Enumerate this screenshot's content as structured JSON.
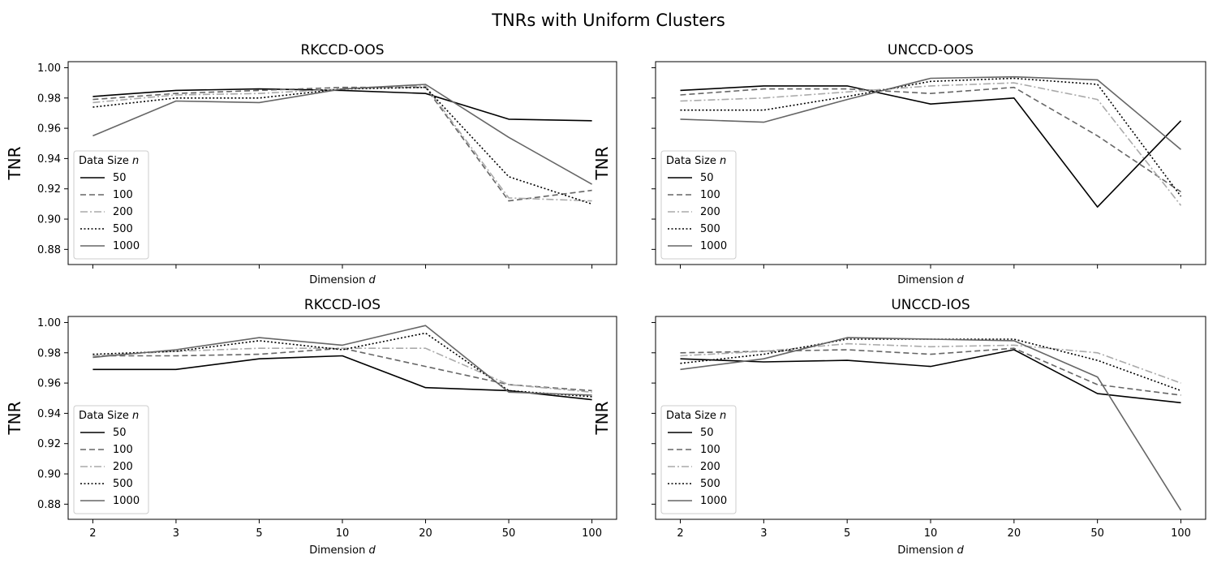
{
  "figure_title": "TNRs with Uniform Clusters",
  "chart_data": [
    {
      "type": "line",
      "title": "RKCCD-OOS",
      "xlabel": "Dimension d",
      "ylabel": "TNR",
      "x_is_categorical": true,
      "categories": [
        "2",
        "3",
        "5",
        "10",
        "20",
        "50",
        "100"
      ],
      "ylim": [
        0.87,
        1.004
      ],
      "yticks": [
        0.88,
        0.9,
        0.92,
        0.94,
        0.96,
        0.98,
        1.0
      ],
      "show_xtick_labels": false,
      "show_ytick_labels": true,
      "legend": {
        "title": "Data Size n",
        "placement": "lower-left"
      },
      "series": [
        {
          "name": "50",
          "style": "solid",
          "color": "#000000",
          "values": [
            0.981,
            0.985,
            0.986,
            0.985,
            0.983,
            0.966,
            0.965
          ]
        },
        {
          "name": "100",
          "style": "dashed",
          "color": "#666666",
          "values": [
            0.979,
            0.983,
            0.985,
            0.987,
            0.987,
            0.912,
            0.919
          ]
        },
        {
          "name": "200",
          "style": "dashdot",
          "color": "#aaaaaa",
          "values": [
            0.977,
            0.982,
            0.983,
            0.986,
            0.988,
            0.914,
            0.912
          ]
        },
        {
          "name": "500",
          "style": "dotted",
          "color": "#000000",
          "values": [
            0.974,
            0.98,
            0.98,
            0.986,
            0.987,
            0.928,
            0.91
          ]
        },
        {
          "name": "1000",
          "style": "solid",
          "color": "#666666",
          "values": [
            0.955,
            0.978,
            0.977,
            0.986,
            0.989,
            0.954,
            0.923
          ]
        }
      ]
    },
    {
      "type": "line",
      "title": "UNCCD-OOS",
      "xlabel": "Dimension d",
      "ylabel": "TNR",
      "x_is_categorical": true,
      "categories": [
        "2",
        "3",
        "5",
        "10",
        "20",
        "50",
        "100"
      ],
      "ylim": [
        0.87,
        1.004
      ],
      "yticks": [
        0.88,
        0.9,
        0.92,
        0.94,
        0.96,
        0.98,
        1.0
      ],
      "show_xtick_labels": false,
      "show_ytick_labels": false,
      "legend": {
        "title": "Data Size n",
        "placement": "lower-left"
      },
      "series": [
        {
          "name": "50",
          "style": "solid",
          "color": "#000000",
          "values": [
            0.985,
            0.988,
            0.988,
            0.976,
            0.98,
            0.908,
            0.965
          ]
        },
        {
          "name": "100",
          "style": "dashed",
          "color": "#666666",
          "values": [
            0.982,
            0.986,
            0.986,
            0.983,
            0.987,
            0.955,
            0.918
          ]
        },
        {
          "name": "200",
          "style": "dashdot",
          "color": "#aaaaaa",
          "values": [
            0.978,
            0.98,
            0.984,
            0.988,
            0.99,
            0.979,
            0.909
          ]
        },
        {
          "name": "500",
          "style": "dotted",
          "color": "#000000",
          "values": [
            0.972,
            0.972,
            0.981,
            0.991,
            0.993,
            0.989,
            0.915
          ]
        },
        {
          "name": "1000",
          "style": "solid",
          "color": "#666666",
          "values": [
            0.966,
            0.964,
            0.979,
            0.993,
            0.994,
            0.992,
            0.946
          ]
        }
      ]
    },
    {
      "type": "line",
      "title": "RKCCD-IOS",
      "xlabel": "Dimension d",
      "ylabel": "TNR",
      "x_is_categorical": true,
      "categories": [
        "2",
        "3",
        "5",
        "10",
        "20",
        "50",
        "100"
      ],
      "ylim": [
        0.87,
        1.004
      ],
      "yticks": [
        0.88,
        0.9,
        0.92,
        0.94,
        0.96,
        0.98,
        1.0
      ],
      "show_xtick_labels": true,
      "show_ytick_labels": true,
      "legend": {
        "title": "Data Size n",
        "placement": "lower-left"
      },
      "series": [
        {
          "name": "50",
          "style": "solid",
          "color": "#000000",
          "values": [
            0.969,
            0.969,
            0.976,
            0.978,
            0.957,
            0.955,
            0.949
          ]
        },
        {
          "name": "100",
          "style": "dashed",
          "color": "#666666",
          "values": [
            0.978,
            0.978,
            0.979,
            0.983,
            0.971,
            0.959,
            0.955
          ]
        },
        {
          "name": "200",
          "style": "dashdot",
          "color": "#aaaaaa",
          "values": [
            0.978,
            0.981,
            0.983,
            0.983,
            0.983,
            0.959,
            0.954
          ]
        },
        {
          "name": "500",
          "style": "dotted",
          "color": "#000000",
          "values": [
            0.979,
            0.981,
            0.988,
            0.982,
            0.993,
            0.955,
            0.951
          ]
        },
        {
          "name": "1000",
          "style": "solid",
          "color": "#666666",
          "values": [
            0.977,
            0.982,
            0.99,
            0.985,
            0.998,
            0.954,
            0.952
          ]
        }
      ]
    },
    {
      "type": "line",
      "title": "UNCCD-IOS",
      "xlabel": "Dimension d",
      "ylabel": "TNR",
      "x_is_categorical": true,
      "categories": [
        "2",
        "3",
        "5",
        "10",
        "20",
        "50",
        "100"
      ],
      "ylim": [
        0.87,
        1.004
      ],
      "yticks": [
        0.88,
        0.9,
        0.92,
        0.94,
        0.96,
        0.98,
        1.0
      ],
      "show_xtick_labels": true,
      "show_ytick_labels": false,
      "legend": {
        "title": "Data Size n",
        "placement": "lower-left"
      },
      "series": [
        {
          "name": "50",
          "style": "solid",
          "color": "#000000",
          "values": [
            0.976,
            0.974,
            0.975,
            0.971,
            0.982,
            0.953,
            0.947
          ]
        },
        {
          "name": "100",
          "style": "dashed",
          "color": "#666666",
          "values": [
            0.98,
            0.981,
            0.982,
            0.979,
            0.983,
            0.959,
            0.952
          ]
        },
        {
          "name": "200",
          "style": "dashdot",
          "color": "#aaaaaa",
          "values": [
            0.978,
            0.981,
            0.986,
            0.984,
            0.985,
            0.98,
            0.96
          ]
        },
        {
          "name": "500",
          "style": "dotted",
          "color": "#000000",
          "values": [
            0.973,
            0.979,
            0.989,
            0.989,
            0.989,
            0.975,
            0.955
          ]
        },
        {
          "name": "1000",
          "style": "solid",
          "color": "#666666",
          "values": [
            0.969,
            0.976,
            0.99,
            0.989,
            0.988,
            0.964,
            0.876
          ]
        }
      ]
    }
  ]
}
